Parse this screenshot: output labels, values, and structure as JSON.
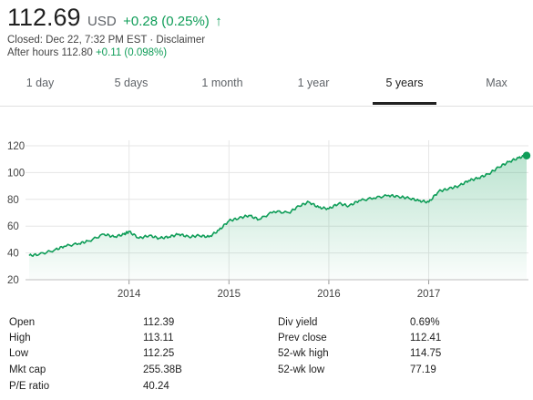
{
  "quote": {
    "price": "112.69",
    "currency": "USD",
    "change": "+0.28 (0.25%)",
    "closed_prefix": "Closed: Dec 22, 7:32 PM EST · ",
    "disclaimer": "Disclaimer",
    "after_hours_label": "After hours 112.80",
    "after_hours_change": "+0.11 (0.098%)"
  },
  "tabs": [
    {
      "label": "1 day",
      "active": false
    },
    {
      "label": "5 days",
      "active": false
    },
    {
      "label": "1 month",
      "active": false
    },
    {
      "label": "1 year",
      "active": false
    },
    {
      "label": "5 years",
      "active": true
    },
    {
      "label": "Max",
      "active": false
    }
  ],
  "colors": {
    "positive": "#0f9d58",
    "line": "#0f9d58"
  },
  "icons": {
    "change_arrow": "arrow-up-icon"
  },
  "chart_data": {
    "type": "area",
    "ylim": [
      20,
      120
    ],
    "yticks": [
      "20",
      "40",
      "60",
      "80",
      "100",
      "120"
    ],
    "xticks": [
      "2014",
      "2015",
      "2016",
      "2017"
    ],
    "xlim": [
      2013.0,
      2017.98
    ],
    "grid": true,
    "series": [
      {
        "x": [
          2013.0,
          2013.1,
          2013.25,
          2013.35,
          2013.5,
          2013.6,
          2013.75,
          2013.85,
          2013.95,
          2014.0,
          2014.1,
          2014.2,
          2014.3,
          2014.4,
          2014.5,
          2014.6,
          2014.7,
          2014.8,
          2014.9,
          2015.0,
          2015.1,
          2015.2,
          2015.3,
          2015.45,
          2015.6,
          2015.7,
          2015.8,
          2015.9,
          2016.0,
          2016.1,
          2016.2,
          2016.3,
          2016.45,
          2016.6,
          2016.7,
          2016.8,
          2016.9,
          2017.0,
          2017.1,
          2017.2,
          2017.3,
          2017.4,
          2017.5,
          2017.6,
          2017.7,
          2017.8,
          2017.9,
          2017.98
        ],
        "y": [
          38,
          39,
          42,
          45,
          47,
          49,
          54,
          52,
          54,
          56,
          51,
          53,
          51,
          52,
          54,
          52,
          53,
          52,
          57,
          64,
          66,
          68,
          65,
          71,
          70,
          75,
          78,
          74,
          73,
          77,
          75,
          79,
          81,
          83,
          82,
          81,
          79,
          78,
          86,
          88,
          90,
          94,
          96,
          99,
          104,
          108,
          111,
          112.69
        ]
      }
    ]
  },
  "stats": {
    "left": [
      {
        "label": "Open",
        "value": "112.39"
      },
      {
        "label": "High",
        "value": "113.11"
      },
      {
        "label": "Low",
        "value": "112.25"
      },
      {
        "label": "Mkt cap",
        "value": "255.38B"
      },
      {
        "label": "P/E ratio",
        "value": "40.24"
      }
    ],
    "right": [
      {
        "label": "Div yield",
        "value": "0.69%"
      },
      {
        "label": "Prev close",
        "value": "112.41"
      },
      {
        "label": "52-wk high",
        "value": "114.75"
      },
      {
        "label": "52-wk low",
        "value": "77.19"
      }
    ]
  }
}
